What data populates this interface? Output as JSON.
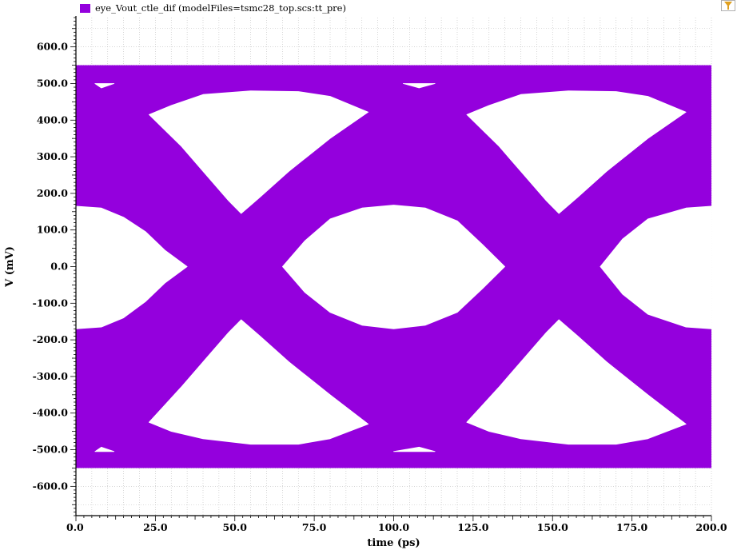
{
  "legend": {
    "label": "eye_Vout_ctle_dif (modelFiles=tsmc28_top.scs:tt_pre)"
  },
  "colors": {
    "trace": "#9400dd",
    "grid": "#bcbcbc",
    "marker": "#e0a020"
  },
  "icons": {
    "marker": "marker-flag-icon"
  },
  "chart_data": {
    "type": "eye",
    "title": "",
    "xlabel": "time (ps)",
    "ylabel": "V (mV)",
    "xlim": [
      0,
      200
    ],
    "ylim": [
      -680,
      680
    ],
    "grid": true,
    "legend_position": "top-left",
    "x_ticks": [
      0,
      25,
      50,
      75,
      100,
      125,
      150,
      175,
      200
    ],
    "x_tick_labels": [
      "0.0",
      "25.0",
      "50.0",
      "75.0",
      "100.0",
      "125.0",
      "150.0",
      "175.0",
      "200.0"
    ],
    "y_ticks": [
      600,
      500,
      400,
      300,
      200,
      100,
      0,
      -100,
      -200,
      -300,
      -400,
      -500,
      -600
    ],
    "y_tick_labels": [
      "600.0",
      "500.0",
      "400.0",
      "300.0",
      "200.0",
      "100.0",
      "0.0",
      "-100.0",
      "-200.0",
      "-300.0",
      "-400.0",
      "-500.0",
      "-600.0"
    ],
    "series": [
      {
        "name": "eye_Vout_ctle_dif (modelFiles=tsmc28_top.scs:tt_pre)",
        "signal_band_mV": [
          -550,
          550
        ],
        "eye_openings": [
          {
            "kind": "upper_lobe",
            "points": [
              [
                23,
                415
              ],
              [
                30,
                440
              ],
              [
                40,
                470
              ],
              [
                55,
                480
              ],
              [
                70,
                478
              ],
              [
                80,
                465
              ],
              [
                92,
                422
              ],
              [
                80,
                350
              ],
              [
                67,
                260
              ],
              [
                58,
                190
              ],
              [
                52,
                145
              ],
              [
                48,
                180
              ],
              [
                40,
                260
              ],
              [
                33,
                330
              ]
            ]
          },
          {
            "kind": "upper_lobe",
            "points": [
              [
                123,
                415
              ],
              [
                130,
                440
              ],
              [
                140,
                470
              ],
              [
                155,
                480
              ],
              [
                170,
                478
              ],
              [
                180,
                465
              ],
              [
                192,
                422
              ],
              [
                180,
                350
              ],
              [
                167,
                260
              ],
              [
                158,
                190
              ],
              [
                152,
                145
              ],
              [
                148,
                180
              ],
              [
                140,
                260
              ],
              [
                133,
                330
              ]
            ]
          },
          {
            "kind": "center_eye",
            "points": [
              [
                65,
                0
              ],
              [
                72,
                70
              ],
              [
                80,
                130
              ],
              [
                90,
                160
              ],
              [
                100,
                168
              ],
              [
                110,
                160
              ],
              [
                120,
                125
              ],
              [
                128,
                60
              ],
              [
                135,
                0
              ],
              [
                128,
                -60
              ],
              [
                120,
                -125
              ],
              [
                110,
                -160
              ],
              [
                100,
                -170
              ],
              [
                90,
                -160
              ],
              [
                80,
                -125
              ],
              [
                72,
                -70
              ]
            ]
          },
          {
            "kind": "lower_lobe",
            "points": [
              [
                23,
                -425
              ],
              [
                33,
                -330
              ],
              [
                40,
                -260
              ],
              [
                48,
                -180
              ],
              [
                52,
                -145
              ],
              [
                58,
                -190
              ],
              [
                67,
                -260
              ],
              [
                80,
                -350
              ],
              [
                92,
                -430
              ],
              [
                80,
                -470
              ],
              [
                70,
                -485
              ],
              [
                55,
                -485
              ],
              [
                40,
                -470
              ],
              [
                30,
                -450
              ]
            ]
          },
          {
            "kind": "lower_lobe",
            "points": [
              [
                123,
                -425
              ],
              [
                133,
                -330
              ],
              [
                140,
                -260
              ],
              [
                148,
                -180
              ],
              [
                152,
                -145
              ],
              [
                158,
                -190
              ],
              [
                167,
                -260
              ],
              [
                180,
                -350
              ],
              [
                192,
                -430
              ],
              [
                180,
                -470
              ],
              [
                170,
                -485
              ],
              [
                155,
                -485
              ],
              [
                140,
                -470
              ],
              [
                130,
                -450
              ]
            ]
          },
          {
            "kind": "edge_eye_left",
            "points": [
              [
                0,
                165
              ],
              [
                8,
                160
              ],
              [
                15,
                135
              ],
              [
                22,
                95
              ],
              [
                28,
                45
              ],
              [
                35,
                0
              ],
              [
                28,
                -45
              ],
              [
                22,
                -95
              ],
              [
                15,
                -140
              ],
              [
                8,
                -165
              ],
              [
                0,
                -170
              ]
            ]
          },
          {
            "kind": "edge_eye_right",
            "points": [
              [
                200,
                165
              ],
              [
                192,
                160
              ],
              [
                180,
                130
              ],
              [
                172,
                75
              ],
              [
                165,
                0
              ],
              [
                172,
                -75
              ],
              [
                180,
                -130
              ],
              [
                192,
                -165
              ],
              [
                200,
                -170
              ]
            ]
          },
          {
            "kind": "notch",
            "points": [
              [
                6,
                500
              ],
              [
                12,
                500
              ],
              [
                8,
                488
              ]
            ]
          },
          {
            "kind": "notch",
            "points": [
              [
                103,
                500
              ],
              [
                113,
                500
              ],
              [
                108,
                488
              ]
            ]
          },
          {
            "kind": "notch",
            "points": [
              [
                6,
                -505
              ],
              [
                12,
                -505
              ],
              [
                8,
                -493
              ]
            ]
          },
          {
            "kind": "notch",
            "points": [
              [
                100,
                -505
              ],
              [
                113,
                -505
              ],
              [
                108,
                -493
              ]
            ]
          }
        ]
      }
    ]
  }
}
